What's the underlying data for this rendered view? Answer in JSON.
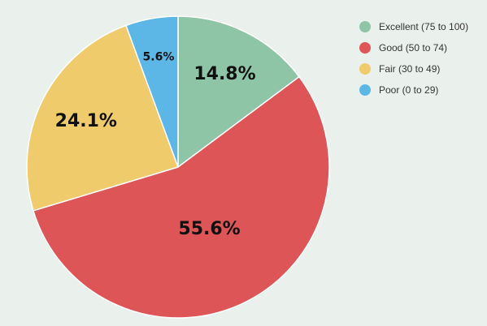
{
  "chart_data": {
    "type": "pie",
    "title": "",
    "legend_position": "top-right",
    "slices": [
      {
        "name": "Excellent (75 to 100)",
        "value": 14.8,
        "label": "14.8%",
        "color": "#8fc5a7"
      },
      {
        "name": "Good (50 to 74)",
        "value": 55.6,
        "label": "55.6%",
        "color": "#dd5556"
      },
      {
        "name": "Fair (30 to 49)",
        "value": 24.1,
        "label": "24.1%",
        "color": "#efcb6c"
      },
      {
        "name": "Poor (0 to 29)",
        "value": 5.6,
        "label": "5.6%",
        "color": "#5db7e6"
      }
    ]
  }
}
